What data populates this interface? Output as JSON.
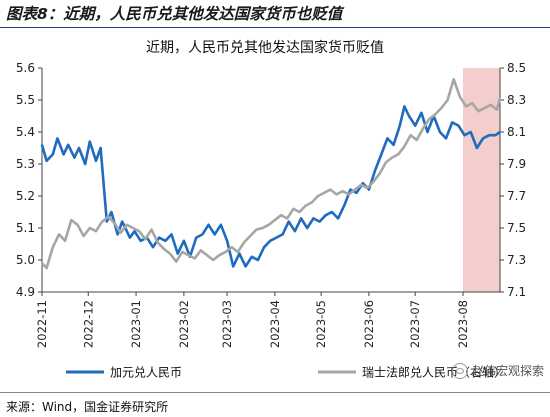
{
  "figure_title": "图表8：近期，人民币兑其他发达国家货币也贬值",
  "source_note": "来源：Wind，国金证券研究所",
  "watermark": "赵伟宏观探索",
  "colors": {
    "series1": "#1f6bbf",
    "series2": "#a6a6a6",
    "highlight": "#f2c4c4",
    "title_rule": "#1f3f8a"
  },
  "chart_data": {
    "type": "line",
    "title": "近期，人民币兑其他发达国家货币贬值",
    "x_tick_labels": [
      "2022-11",
      "2022-12",
      "2023-01",
      "2023-02",
      "2023-03",
      "2023-04",
      "2023-05",
      "2023-06",
      "2023-07",
      "2023-08"
    ],
    "x_range": [
      "2022-11-01",
      "2023-08-25"
    ],
    "y_left": {
      "range": [
        4.9,
        5.6
      ],
      "ticks": [
        "4.9",
        "5.0",
        "5.1",
        "5.2",
        "5.3",
        "5.4",
        "5.5",
        "5.6"
      ]
    },
    "y_right": {
      "range": [
        7.1,
        8.5
      ],
      "ticks": [
        "7.1",
        "7.3",
        "7.5",
        "7.7",
        "7.9",
        "8.1",
        "8.3",
        "8.5"
      ]
    },
    "highlight_range": [
      "2023-08-01",
      "2023-08-25"
    ],
    "grid": false,
    "legend_position": "bottom",
    "series": [
      {
        "name": "加元兑人民币",
        "axis": "left",
        "points": [
          [
            "2022-11-01",
            5.36
          ],
          [
            "2022-11-04",
            5.31
          ],
          [
            "2022-11-08",
            5.33
          ],
          [
            "2022-11-11",
            5.38
          ],
          [
            "2022-11-15",
            5.33
          ],
          [
            "2022-11-18",
            5.36
          ],
          [
            "2022-11-22",
            5.32
          ],
          [
            "2022-11-25",
            5.35
          ],
          [
            "2022-11-29",
            5.3
          ],
          [
            "2022-12-02",
            5.37
          ],
          [
            "2022-12-06",
            5.31
          ],
          [
            "2022-12-09",
            5.35
          ],
          [
            "2022-12-13",
            5.12
          ],
          [
            "2022-12-16",
            5.15
          ],
          [
            "2022-12-20",
            5.08
          ],
          [
            "2022-12-23",
            5.12
          ],
          [
            "2022-12-28",
            5.07
          ],
          [
            "2022-12-31",
            5.09
          ],
          [
            "2023-01-04",
            5.06
          ],
          [
            "2023-01-08",
            5.07
          ],
          [
            "2023-01-12",
            5.04
          ],
          [
            "2023-01-16",
            5.07
          ],
          [
            "2023-01-20",
            5.06
          ],
          [
            "2023-01-24",
            5.08
          ],
          [
            "2023-01-28",
            5.02
          ],
          [
            "2023-02-01",
            5.06
          ],
          [
            "2023-02-05",
            5.01
          ],
          [
            "2023-02-09",
            5.07
          ],
          [
            "2023-02-13",
            5.08
          ],
          [
            "2023-02-17",
            5.11
          ],
          [
            "2023-02-21",
            5.08
          ],
          [
            "2023-02-25",
            5.11
          ],
          [
            "2023-03-01",
            5.06
          ],
          [
            "2023-03-05",
            4.98
          ],
          [
            "2023-03-09",
            5.02
          ],
          [
            "2023-03-13",
            4.98
          ],
          [
            "2023-03-17",
            5.01
          ],
          [
            "2023-03-21",
            5.0
          ],
          [
            "2023-03-25",
            5.04
          ],
          [
            "2023-03-29",
            5.06
          ],
          [
            "2023-04-02",
            5.07
          ],
          [
            "2023-04-06",
            5.08
          ],
          [
            "2023-04-10",
            5.12
          ],
          [
            "2023-04-14",
            5.09
          ],
          [
            "2023-04-18",
            5.13
          ],
          [
            "2023-04-22",
            5.1
          ],
          [
            "2023-04-26",
            5.13
          ],
          [
            "2023-04-30",
            5.12
          ],
          [
            "2023-05-04",
            5.14
          ],
          [
            "2023-05-08",
            5.15
          ],
          [
            "2023-05-12",
            5.13
          ],
          [
            "2023-05-16",
            5.17
          ],
          [
            "2023-05-20",
            5.22
          ],
          [
            "2023-05-24",
            5.21
          ],
          [
            "2023-05-28",
            5.24
          ],
          [
            "2023-06-01",
            5.22
          ],
          [
            "2023-06-05",
            5.28
          ],
          [
            "2023-06-09",
            5.33
          ],
          [
            "2023-06-13",
            5.38
          ],
          [
            "2023-06-17",
            5.36
          ],
          [
            "2023-06-21",
            5.42
          ],
          [
            "2023-06-24",
            5.48
          ],
          [
            "2023-06-27",
            5.45
          ],
          [
            "2023-07-01",
            5.42
          ],
          [
            "2023-07-05",
            5.46
          ],
          [
            "2023-07-09",
            5.4
          ],
          [
            "2023-07-13",
            5.45
          ],
          [
            "2023-07-17",
            5.4
          ],
          [
            "2023-07-21",
            5.38
          ],
          [
            "2023-07-25",
            5.43
          ],
          [
            "2023-07-29",
            5.42
          ],
          [
            "2023-08-02",
            5.39
          ],
          [
            "2023-08-06",
            5.4
          ],
          [
            "2023-08-10",
            5.35
          ],
          [
            "2023-08-14",
            5.38
          ],
          [
            "2023-08-18",
            5.39
          ],
          [
            "2023-08-22",
            5.39
          ],
          [
            "2023-08-25",
            5.4
          ]
        ]
      },
      {
        "name": "瑞士法郎兑人民币（右轴）",
        "axis": "right",
        "points": [
          [
            "2022-11-01",
            7.28
          ],
          [
            "2022-11-04",
            7.25
          ],
          [
            "2022-11-08",
            7.38
          ],
          [
            "2022-11-12",
            7.46
          ],
          [
            "2022-11-16",
            7.42
          ],
          [
            "2022-11-20",
            7.55
          ],
          [
            "2022-11-24",
            7.52
          ],
          [
            "2022-11-28",
            7.45
          ],
          [
            "2022-12-02",
            7.5
          ],
          [
            "2022-12-06",
            7.48
          ],
          [
            "2022-12-10",
            7.54
          ],
          [
            "2022-12-14",
            7.57
          ],
          [
            "2022-12-18",
            7.53
          ],
          [
            "2022-12-22",
            7.47
          ],
          [
            "2022-12-26",
            7.52
          ],
          [
            "2022-12-30",
            7.5
          ],
          [
            "2023-01-03",
            7.48
          ],
          [
            "2023-01-07",
            7.43
          ],
          [
            "2023-01-11",
            7.49
          ],
          [
            "2023-01-15",
            7.41
          ],
          [
            "2023-01-19",
            7.37
          ],
          [
            "2023-01-23",
            7.34
          ],
          [
            "2023-01-27",
            7.29
          ],
          [
            "2023-01-31",
            7.35
          ],
          [
            "2023-02-04",
            7.33
          ],
          [
            "2023-02-08",
            7.31
          ],
          [
            "2023-02-12",
            7.36
          ],
          [
            "2023-02-16",
            7.33
          ],
          [
            "2023-02-20",
            7.3
          ],
          [
            "2023-02-24",
            7.33
          ],
          [
            "2023-02-28",
            7.35
          ],
          [
            "2023-03-04",
            7.38
          ],
          [
            "2023-03-08",
            7.35
          ],
          [
            "2023-03-12",
            7.41
          ],
          [
            "2023-03-16",
            7.45
          ],
          [
            "2023-03-20",
            7.49
          ],
          [
            "2023-03-24",
            7.5
          ],
          [
            "2023-03-28",
            7.52
          ],
          [
            "2023-04-01",
            7.55
          ],
          [
            "2023-04-05",
            7.58
          ],
          [
            "2023-04-09",
            7.56
          ],
          [
            "2023-04-13",
            7.62
          ],
          [
            "2023-04-17",
            7.6
          ],
          [
            "2023-04-21",
            7.64
          ],
          [
            "2023-04-25",
            7.66
          ],
          [
            "2023-04-29",
            7.7
          ],
          [
            "2023-05-03",
            7.72
          ],
          [
            "2023-05-07",
            7.74
          ],
          [
            "2023-05-11",
            7.71
          ],
          [
            "2023-05-15",
            7.73
          ],
          [
            "2023-05-19",
            7.71
          ],
          [
            "2023-05-23",
            7.74
          ],
          [
            "2023-05-27",
            7.77
          ],
          [
            "2023-05-31",
            7.75
          ],
          [
            "2023-06-04",
            7.79
          ],
          [
            "2023-06-08",
            7.84
          ],
          [
            "2023-06-12",
            7.91
          ],
          [
            "2023-06-16",
            7.94
          ],
          [
            "2023-06-20",
            7.96
          ],
          [
            "2023-06-24",
            8.01
          ],
          [
            "2023-06-28",
            8.08
          ],
          [
            "2023-07-02",
            8.05
          ],
          [
            "2023-07-06",
            8.12
          ],
          [
            "2023-07-10",
            8.18
          ],
          [
            "2023-07-14",
            8.21
          ],
          [
            "2023-07-18",
            8.25
          ],
          [
            "2023-07-22",
            8.3
          ],
          [
            "2023-07-26",
            8.43
          ],
          [
            "2023-07-30",
            8.32
          ],
          [
            "2023-08-03",
            8.26
          ],
          [
            "2023-08-07",
            8.28
          ],
          [
            "2023-08-11",
            8.23
          ],
          [
            "2023-08-15",
            8.25
          ],
          [
            "2023-08-19",
            8.27
          ],
          [
            "2023-08-23",
            8.24
          ],
          [
            "2023-08-25",
            8.31
          ]
        ]
      }
    ]
  }
}
